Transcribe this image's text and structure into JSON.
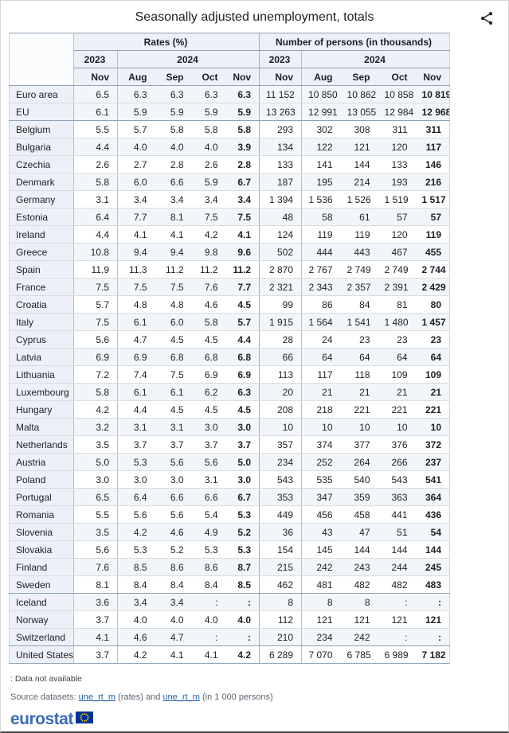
{
  "title": "Seasonally adjusted unemployment, totals",
  "table": {
    "group_headers": [
      "Rates (%)",
      "Number of persons (in thousands)"
    ],
    "year_headers": {
      "rates": [
        "2023",
        "2024"
      ],
      "persons": [
        "2023",
        "2024"
      ]
    },
    "month_headers": {
      "rates": [
        "Nov",
        "Aug",
        "Sep",
        "Oct",
        "Nov"
      ],
      "persons": [
        "Nov",
        "Aug",
        "Sep",
        "Oct",
        "Nov"
      ]
    },
    "rows": [
      {
        "label": "Euro area",
        "rates": [
          "6.5",
          "6.3",
          "6.3",
          "6.3",
          "6.3"
        ],
        "persons": [
          "11 152",
          "10 850",
          "10 862",
          "10 858",
          "10 819"
        ],
        "section_end": false
      },
      {
        "label": "EU",
        "rates": [
          "6.1",
          "5.9",
          "5.9",
          "5.9",
          "5.9"
        ],
        "persons": [
          "13 263",
          "12 991",
          "13 055",
          "12 984",
          "12 968"
        ],
        "section_end": true
      },
      {
        "label": "Belgium",
        "rates": [
          "5.5",
          "5.7",
          "5.8",
          "5.8",
          "5.8"
        ],
        "persons": [
          "293",
          "302",
          "308",
          "311",
          "311"
        ],
        "section_end": false
      },
      {
        "label": "Bulgaria",
        "rates": [
          "4.4",
          "4.0",
          "4.0",
          "4.0",
          "3.9"
        ],
        "persons": [
          "134",
          "122",
          "121",
          "120",
          "117"
        ],
        "section_end": false
      },
      {
        "label": "Czechia",
        "rates": [
          "2.6",
          "2.7",
          "2.8",
          "2.6",
          "2.8"
        ],
        "persons": [
          "133",
          "141",
          "144",
          "133",
          "146"
        ],
        "section_end": false
      },
      {
        "label": "Denmark",
        "rates": [
          "5.8",
          "6.0",
          "6.6",
          "5.9",
          "6.7"
        ],
        "persons": [
          "187",
          "195",
          "214",
          "193",
          "216"
        ],
        "section_end": false
      },
      {
        "label": "Germany",
        "rates": [
          "3.1",
          "3.4",
          "3.4",
          "3.4",
          "3.4"
        ],
        "persons": [
          "1 394",
          "1 536",
          "1 526",
          "1 519",
          "1 517"
        ],
        "section_end": false
      },
      {
        "label": "Estonia",
        "rates": [
          "6.4",
          "7.7",
          "8.1",
          "7.5",
          "7.5"
        ],
        "persons": [
          "48",
          "58",
          "61",
          "57",
          "57"
        ],
        "section_end": false
      },
      {
        "label": "Ireland",
        "rates": [
          "4.4",
          "4.1",
          "4.1",
          "4.2",
          "4.1"
        ],
        "persons": [
          "124",
          "119",
          "119",
          "120",
          "119"
        ],
        "section_end": false
      },
      {
        "label": "Greece",
        "rates": [
          "10.8",
          "9.4",
          "9.4",
          "9.8",
          "9.6"
        ],
        "persons": [
          "502",
          "444",
          "443",
          "467",
          "455"
        ],
        "section_end": false
      },
      {
        "label": "Spain",
        "rates": [
          "11.9",
          "11.3",
          "11.2",
          "11.2",
          "11.2"
        ],
        "persons": [
          "2 870",
          "2 767",
          "2 749",
          "2 749",
          "2 744"
        ],
        "section_end": false
      },
      {
        "label": "France",
        "rates": [
          "7.5",
          "7.5",
          "7.5",
          "7.6",
          "7.7"
        ],
        "persons": [
          "2 321",
          "2 343",
          "2 357",
          "2 391",
          "2 429"
        ],
        "section_end": false
      },
      {
        "label": "Croatia",
        "rates": [
          "5.7",
          "4.8",
          "4.8",
          "4.6",
          "4.5"
        ],
        "persons": [
          "99",
          "86",
          "84",
          "81",
          "80"
        ],
        "section_end": false
      },
      {
        "label": "Italy",
        "rates": [
          "7.5",
          "6.1",
          "6.0",
          "5.8",
          "5.7"
        ],
        "persons": [
          "1 915",
          "1 564",
          "1 541",
          "1 480",
          "1 457"
        ],
        "section_end": false
      },
      {
        "label": "Cyprus",
        "rates": [
          "5.6",
          "4.7",
          "4.5",
          "4.5",
          "4.4"
        ],
        "persons": [
          "28",
          "24",
          "23",
          "23",
          "23"
        ],
        "section_end": false
      },
      {
        "label": "Latvia",
        "rates": [
          "6.9",
          "6.9",
          "6.8",
          "6.8",
          "6.8"
        ],
        "persons": [
          "66",
          "64",
          "64",
          "64",
          "64"
        ],
        "section_end": false
      },
      {
        "label": "Lithuania",
        "rates": [
          "7.2",
          "7.4",
          "7.5",
          "6.9",
          "6.9"
        ],
        "persons": [
          "113",
          "117",
          "118",
          "109",
          "109"
        ],
        "section_end": false
      },
      {
        "label": "Luxembourg",
        "rates": [
          "5.8",
          "6.1",
          "6.1",
          "6.2",
          "6.3"
        ],
        "persons": [
          "20",
          "21",
          "21",
          "21",
          "21"
        ],
        "section_end": false
      },
      {
        "label": "Hungary",
        "rates": [
          "4.2",
          "4.4",
          "4.5",
          "4.5",
          "4.5"
        ],
        "persons": [
          "208",
          "218",
          "221",
          "221",
          "221"
        ],
        "section_end": false
      },
      {
        "label": "Malta",
        "rates": [
          "3.2",
          "3.1",
          "3.1",
          "3.0",
          "3.0"
        ],
        "persons": [
          "10",
          "10",
          "10",
          "10",
          "10"
        ],
        "section_end": false
      },
      {
        "label": "Netherlands",
        "rates": [
          "3.5",
          "3.7",
          "3.7",
          "3.7",
          "3.7"
        ],
        "persons": [
          "357",
          "374",
          "377",
          "376",
          "372"
        ],
        "section_end": false
      },
      {
        "label": "Austria",
        "rates": [
          "5.0",
          "5.3",
          "5.6",
          "5.6",
          "5.0"
        ],
        "persons": [
          "234",
          "252",
          "264",
          "266",
          "237"
        ],
        "section_end": false
      },
      {
        "label": "Poland",
        "rates": [
          "3.0",
          "3.0",
          "3.0",
          "3.1",
          "3.0"
        ],
        "persons": [
          "543",
          "535",
          "540",
          "543",
          "541"
        ],
        "section_end": false
      },
      {
        "label": "Portugal",
        "rates": [
          "6.5",
          "6.4",
          "6.6",
          "6.6",
          "6.7"
        ],
        "persons": [
          "353",
          "347",
          "359",
          "363",
          "364"
        ],
        "section_end": false
      },
      {
        "label": "Romania",
        "rates": [
          "5.5",
          "5.6",
          "5.6",
          "5.4",
          "5.3"
        ],
        "persons": [
          "449",
          "456",
          "458",
          "441",
          "436"
        ],
        "section_end": false
      },
      {
        "label": "Slovenia",
        "rates": [
          "3.5",
          "4.2",
          "4.6",
          "4.9",
          "5.2"
        ],
        "persons": [
          "36",
          "43",
          "47",
          "51",
          "54"
        ],
        "section_end": false
      },
      {
        "label": "Slovakia",
        "rates": [
          "5.6",
          "5.3",
          "5.2",
          "5.3",
          "5.3"
        ],
        "persons": [
          "154",
          "145",
          "144",
          "144",
          "144"
        ],
        "section_end": false
      },
      {
        "label": "Finland",
        "rates": [
          "7.6",
          "8.5",
          "8.6",
          "8.6",
          "8.7"
        ],
        "persons": [
          "215",
          "242",
          "243",
          "244",
          "245"
        ],
        "section_end": false
      },
      {
        "label": "Sweden",
        "rates": [
          "8.1",
          "8.4",
          "8.4",
          "8.4",
          "8.5"
        ],
        "persons": [
          "462",
          "481",
          "482",
          "482",
          "483"
        ],
        "section_end": true
      },
      {
        "label": "Iceland",
        "rates": [
          "3.6",
          "3.4",
          "3.4",
          ":",
          ":"
        ],
        "persons": [
          "8",
          "8",
          "8",
          ":",
          ":"
        ],
        "section_end": false
      },
      {
        "label": "Norway",
        "rates": [
          "3.7",
          "4.0",
          "4.0",
          "4.0",
          "4.0"
        ],
        "persons": [
          "112",
          "121",
          "121",
          "121",
          "121"
        ],
        "section_end": false
      },
      {
        "label": "Switzerland",
        "rates": [
          "4.1",
          "4.6",
          "4.7",
          ":",
          ":"
        ],
        "persons": [
          "210",
          "234",
          "242",
          ":",
          ":"
        ],
        "section_end": true
      },
      {
        "label": "United States",
        "rates": [
          "3.7",
          "4.2",
          "4.1",
          "4.1",
          "4.2"
        ],
        "persons": [
          "6 289",
          "7 070",
          "6 785",
          "6 989",
          "7 182"
        ],
        "section_end": true
      }
    ]
  },
  "footnote": ": Data not available",
  "source": {
    "prefix": "Source datasets:",
    "link1": "une_rt_m",
    "middle": "(rates) and",
    "link2": "une_rt_m",
    "suffix": "(in 1 000 persons)"
  },
  "logo": {
    "text": "eurostat"
  },
  "colors": {
    "header_bg": "#edf1f7",
    "stripe_bg": "#f3f6f9",
    "border_dark": "#8ea3b7",
    "border_light": "#d4dde5",
    "link_blue": "#1d5fab",
    "eurostat_blue": "#3c6cb4",
    "flag_blue": "#003399",
    "star_yellow": "#ffcc00"
  }
}
